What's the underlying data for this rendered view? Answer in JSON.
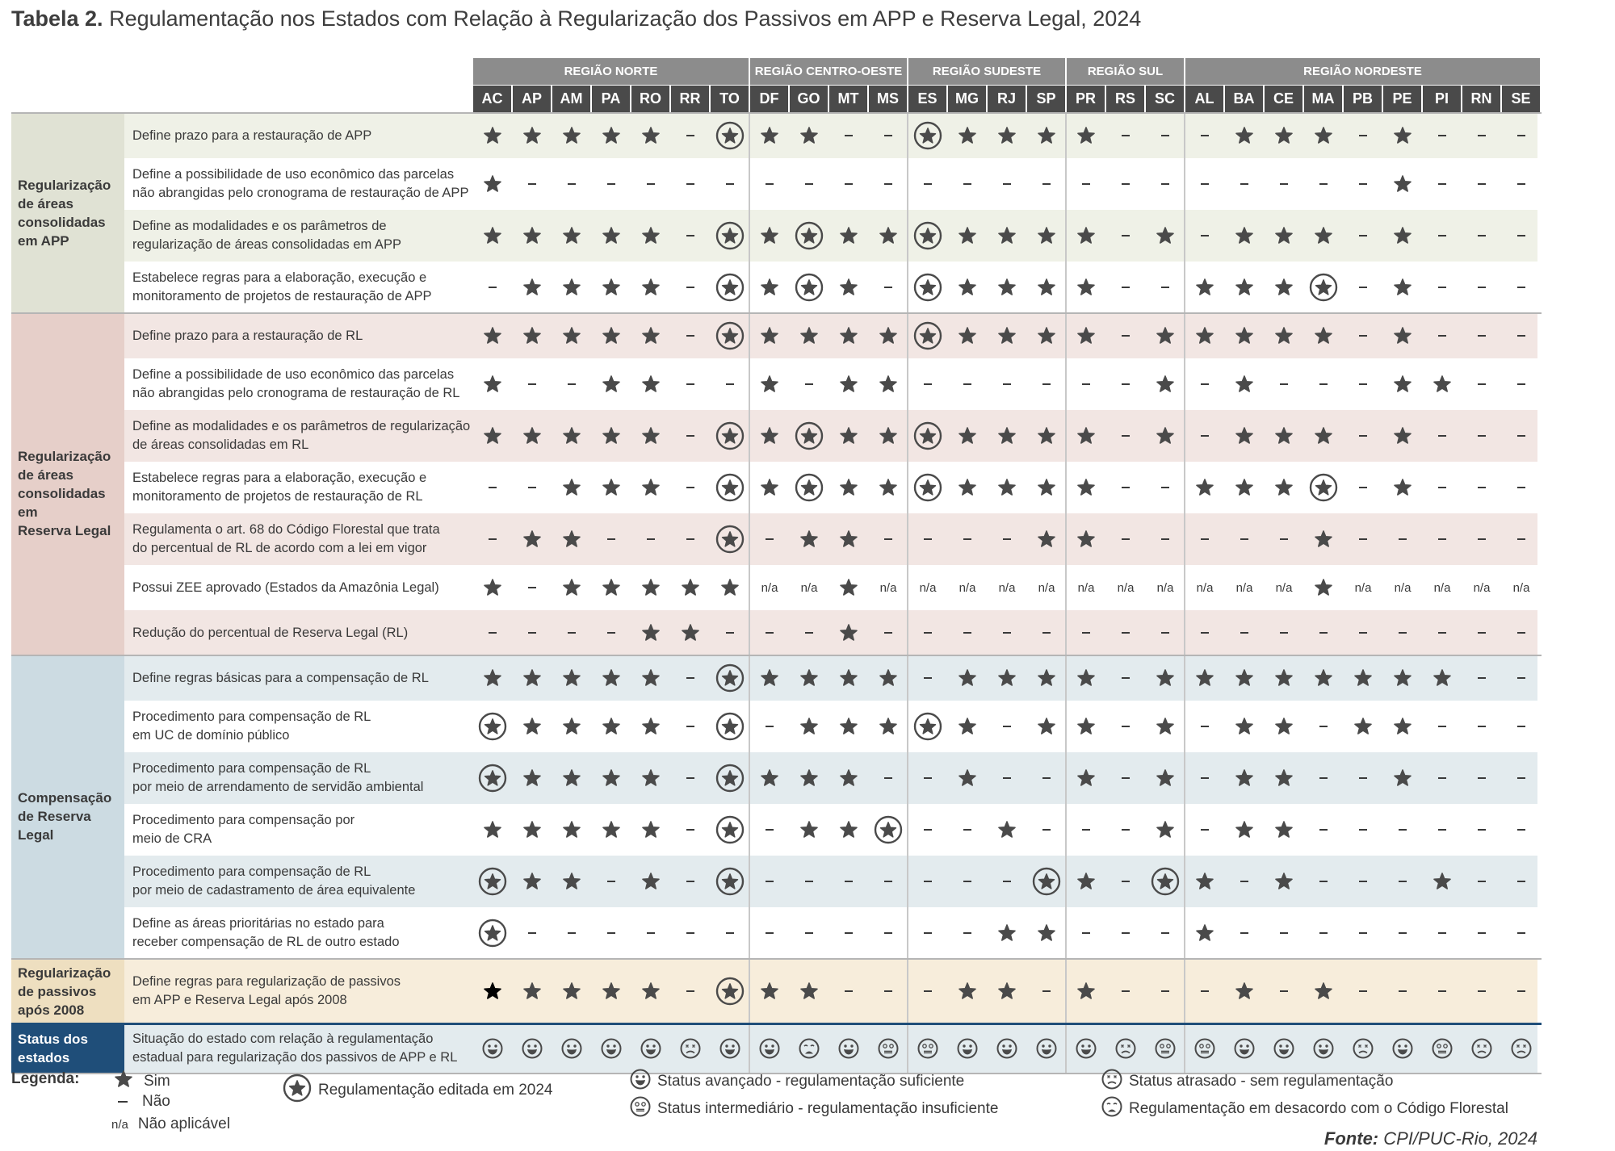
{
  "title": {
    "bold": "Tabela 2.",
    "text": "Regulamentação nos Estados com Relação à Regularização dos Passivos em APP e Reserva Legal, 2024"
  },
  "regions": [
    {
      "name": "REGIÃO NORTE",
      "states": [
        "AC",
        "AP",
        "AM",
        "PA",
        "RO",
        "RR",
        "TO"
      ]
    },
    {
      "name": "REGIÃO CENTRO-OESTE",
      "states": [
        "DF",
        "GO",
        "MT",
        "MS"
      ]
    },
    {
      "name": "REGIÃO SUDESTE",
      "states": [
        "ES",
        "MG",
        "RJ",
        "SP"
      ]
    },
    {
      "name": "REGIÃO SUL",
      "states": [
        "PR",
        "RS",
        "SC"
      ]
    },
    {
      "name": "REGIÃO NORDESTE",
      "states": [
        "AL",
        "BA",
        "CE",
        "MA",
        "PB",
        "PE",
        "PI",
        "RN",
        "SE"
      ]
    }
  ],
  "groups": [
    {
      "label": [
        "Regularização",
        "de áreas",
        "consolidadas",
        "em APP"
      ],
      "color": "#e0e2d4",
      "row_color": "#eff1e7",
      "rows": [
        0,
        1,
        2,
        3
      ]
    },
    {
      "label": [
        "Regularização",
        "de áreas",
        "consolidadas em",
        "Reserva Legal"
      ],
      "color": "#e6cfc9",
      "row_color": "#f2e6e3",
      "rows": [
        4,
        5,
        6,
        7,
        8,
        9,
        10
      ]
    },
    {
      "label": [
        "Compensação",
        "de Reserva Legal"
      ],
      "color": "#ccdbe2",
      "row_color": "#e3ebee",
      "rows": [
        11,
        12,
        13,
        14,
        15,
        16
      ]
    },
    {
      "label": [
        "Regularização",
        "de passivos",
        "após 2008"
      ],
      "color": "#eedfc0",
      "row_color": "#f7eddb",
      "rows": [
        17
      ]
    },
    {
      "label": [
        "Status dos",
        "estados"
      ],
      "color": "#1f4e79",
      "row_color": "#e3ebee",
      "rows": [
        18
      ],
      "label_color": "#ffffff"
    }
  ],
  "rows": [
    {
      "label": [
        "Define prazo para a restauração de APP"
      ],
      "cells": "S S S S S - E S S - - E S S S S - - - S S S - S - - -"
    },
    {
      "label": [
        "Define a possibilidade de uso econômico das parcelas",
        "não abrangidas pelo cronograma de restauração de APP"
      ],
      "cells": "S - - - - - - - - - - - - - - - - - - - - - - S - - -"
    },
    {
      "label": [
        "Define as modalidades e os parâmetros de",
        "regularização de áreas consolidadas em APP"
      ],
      "cells": "S S S S S - E S E S S E S S S S - S - S S S - S - - -"
    },
    {
      "label": [
        "Estabelece regras para a elaboração, execução e",
        "monitoramento de projetos de restauração de APP"
      ],
      "cells": "- S S S S - E S E S - E S S S S - - S S S E - S - - -"
    },
    {
      "label": [
        "Define prazo para a restauração de RL"
      ],
      "cells": "S S S S S - E S S S S E S S S S - S S S S S - S - - -"
    },
    {
      "label": [
        "Define a possibilidade de uso econômico das parcelas",
        "não abrangidas pelo cronograma de restauração de RL"
      ],
      "cells": "S - - S S - - S - S S - - - - - - S - S - - - S S - -"
    },
    {
      "label": [
        "Define as modalidades e os parâmetros de regularização",
        "de áreas consolidadas em RL"
      ],
      "cells": "S S S S S - E S E S S E S S S S - S - S S S - S - - -"
    },
    {
      "label": [
        "Estabelece regras para a elaboração, execução e",
        "monitoramento de projetos de restauração de RL"
      ],
      "cells": "- - S S S - E S E S S E S S S S - - S S S E - S - - -"
    },
    {
      "label": [
        "Regulamenta o art. 68 do Código Florestal que trata",
        "do percentual de RL de acordo com a lei em vigor"
      ],
      "cells": "- S S - - - E - S S - - - - S S - - - - - S - - - - -"
    },
    {
      "label": [
        "Possui ZEE aprovado (Estados da Amazônia Legal)"
      ],
      "cells": "S - S S S S S n/a n/a S n/a n/a n/a n/a n/a n/a n/a n/a n/a n/a n/a S n/a n/a n/a n/a n/a"
    },
    {
      "label": [
        "Redução do percentual de Reserva Legal (RL)"
      ],
      "cells": "- - - - S S - - - S - - - - - - - - - - - - - - - - -"
    },
    {
      "label": [
        "Define regras básicas para a compensação de RL"
      ],
      "cells": "S S S S S - E S S S S - S S S S - S S S S S S S S - -"
    },
    {
      "label": [
        "Procedimento para compensação de RL",
        "em UC de domínio público"
      ],
      "cells": "E S S S S - E - S S S E S - S S - S - S S - S S - - -"
    },
    {
      "label": [
        "Procedimento para compensação de RL",
        "por meio de arrendamento de servidão ambiental"
      ],
      "cells": "E S S S S - E S S S - - S - - S - S - S S - - S - - -"
    },
    {
      "label": [
        "Procedimento para compensação por",
        "meio de CRA"
      ],
      "cells": "S S S S S - E - S S E - - S - - - S - S S - - - - - -"
    },
    {
      "label": [
        "Procedimento para compensação de RL",
        "por meio de cadastramento de área equivalente"
      ],
      "cells": "E S S - S - E - - - - - - - E S - E S - S - - - S - -"
    },
    {
      "label": [
        "Define as áreas prioritárias no estado para",
        "receber compensação de RL de outro estado"
      ],
      "cells": "E - - - - - - - - - - - - S S - - - S - - - - - - - -"
    },
    {
      "label": [
        "Define regras para regularização de passivos",
        "em APP e Reserva Legal após 2008"
      ],
      "cells": "B S S S S - E S S - - - S S - S - - - S - S - - - - -"
    },
    {
      "label": [
        "Situação do estado com relação à regulamentação",
        "estadual para regularização dos passivos de APP e RL"
      ],
      "cells": "A A A A A L A A D A I I A A A A L I I A A A L A I L L"
    }
  ],
  "legend": {
    "heading": "Legenda:",
    "sim": "Sim",
    "nao": "Não",
    "na_symbol": "n/a",
    "na_label": "Não aplicável",
    "edited": "Regulamentação editada em 2024",
    "advanced": "Status avançado - regulamentação suficiente",
    "intermediate": "Status intermediário - regulamentação insuficiente",
    "late": "Status atrasado - sem regulamentação",
    "disagree": "Regulamentação em desacordo com o Código Florestal"
  },
  "source": {
    "bold": "Fonte:",
    "text": "CPI/PUC-Rio, 2024"
  },
  "colors": {
    "star": "#4a4a4a",
    "header_dark": "#4a4a4a",
    "header_region": "#8c8c8c",
    "status_label": "#1f4e79"
  }
}
